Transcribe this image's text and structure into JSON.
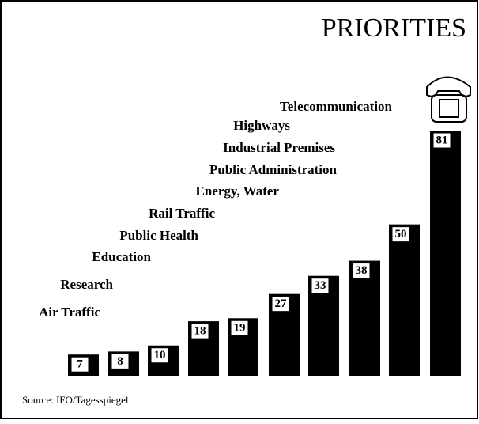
{
  "chart_data": {
    "type": "bar",
    "title": "PRIORITIES",
    "categories": [
      "Air Traffic",
      "Research",
      "Education",
      "Public Health",
      "Rail Traffic",
      "Energy, Water",
      "Public Administration",
      "Industrial Premises",
      "Highways",
      "Telecommunication"
    ],
    "values": [
      7,
      8,
      10,
      18,
      19,
      27,
      33,
      38,
      50,
      81
    ],
    "color": "#000000",
    "source": "Source: IFO/Tagesspiegel"
  }
}
